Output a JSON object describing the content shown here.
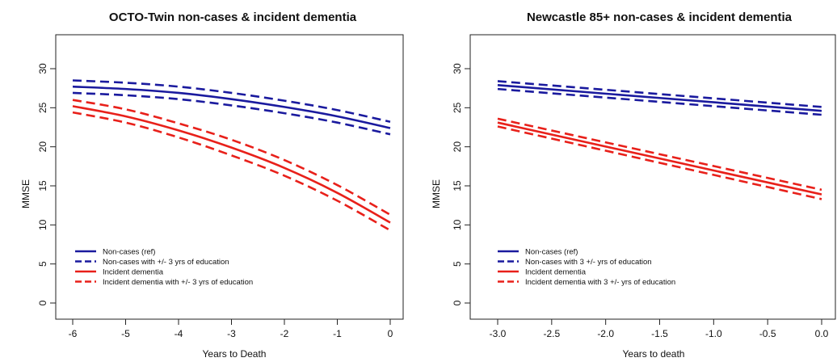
{
  "colors": {
    "non_cases": "#1a1a9e",
    "dementia": "#e8201a"
  },
  "chart_data": [
    {
      "type": "line",
      "title": "OCTO-Twin non-cases & incident dementia",
      "xlabel": "Years to Death",
      "ylabel": "MMSE",
      "xlim": [
        -6,
        0
      ],
      "ylim": [
        0,
        30
      ],
      "xticks": [
        -6,
        -5,
        -4,
        -3,
        -2,
        -1,
        0
      ],
      "xtick_labels": [
        "-6",
        "-5",
        "-4",
        "-3",
        "-2",
        "-1",
        "0"
      ],
      "yticks": [
        0,
        5,
        10,
        15,
        20,
        25,
        30
      ],
      "ytick_labels": [
        "0",
        "5",
        "10",
        "15",
        "20",
        "25",
        "30"
      ],
      "grid": false,
      "legend_position": "bottom-left",
      "legend": [
        "Non-cases (ref)",
        "Non-cases with +/- 3 yrs of education",
        "Incident dementia",
        "Incident dementia with +/- 3 yrs of education"
      ],
      "x": [
        -6,
        -5,
        -4,
        -3,
        -2,
        -1,
        0
      ],
      "series": [
        {
          "name": "Non-cases (ref)",
          "color_key": "non_cases",
          "style": "solid",
          "values": [
            27.7,
            27.4,
            26.9,
            26.1,
            25.1,
            23.9,
            22.4
          ]
        },
        {
          "name": "Non-cases with +/- 3 yrs of education",
          "color_key": "non_cases",
          "style": "dashed",
          "values": [
            28.5,
            28.2,
            27.7,
            26.9,
            25.9,
            24.7,
            23.2
          ]
        },
        {
          "name": "Non-cases with +/- 3 yrs of education",
          "color_key": "non_cases",
          "style": "dashed",
          "values": [
            26.9,
            26.6,
            26.1,
            25.3,
            24.3,
            23.1,
            21.6
          ]
        },
        {
          "name": "Incident dementia",
          "color_key": "dementia",
          "style": "solid",
          "values": [
            25.2,
            23.9,
            22.1,
            19.9,
            17.3,
            14.1,
            10.3
          ]
        },
        {
          "name": "Incident dementia with +/- 3 yrs of education",
          "color_key": "dementia",
          "style": "dashed",
          "values": [
            26.0,
            24.8,
            23.0,
            20.9,
            18.3,
            15.1,
            11.3
          ]
        },
        {
          "name": "Incident dementia with +/- 3 yrs of education",
          "color_key": "dementia",
          "style": "dashed",
          "values": [
            24.4,
            23.1,
            21.2,
            18.9,
            16.3,
            13.1,
            9.3
          ]
        }
      ]
    },
    {
      "type": "line",
      "title": "Newcastle 85+ non-cases & incident dementia",
      "xlabel": "Years to death",
      "ylabel": "MMSE",
      "xlim": [
        -3,
        0
      ],
      "ylim": [
        0,
        30
      ],
      "xticks": [
        -3,
        -2.5,
        -2,
        -1.5,
        -1,
        -0.5,
        0
      ],
      "xtick_labels": [
        "-3.0",
        "-2.5",
        "-2.0",
        "-1.5",
        "-1.0",
        "-0.5",
        "0.0"
      ],
      "yticks": [
        0,
        5,
        10,
        15,
        20,
        25,
        30
      ],
      "ytick_labels": [
        "0",
        "5",
        "10",
        "15",
        "20",
        "25",
        "30"
      ],
      "grid": false,
      "legend_position": "bottom-left",
      "legend": [
        "Non-cases (ref)",
        "Non-cases with 3 +/- yrs of education",
        "Incident dementia",
        "Incident dementia with 3 +/- yrs of education"
      ],
      "x": [
        -3,
        0
      ],
      "series": [
        {
          "name": "Non-cases (ref)",
          "color_key": "non_cases",
          "style": "solid",
          "values": [
            27.9,
            24.6
          ]
        },
        {
          "name": "Non-cases with 3 +/- yrs of education",
          "color_key": "non_cases",
          "style": "dashed",
          "values": [
            28.4,
            25.1
          ]
        },
        {
          "name": "Non-cases with 3 +/- yrs of education",
          "color_key": "non_cases",
          "style": "dashed",
          "values": [
            27.4,
            24.1
          ]
        },
        {
          "name": "Incident dementia",
          "color_key": "dementia",
          "style": "solid",
          "values": [
            23.1,
            13.9
          ]
        },
        {
          "name": "Incident dementia with 3 +/- yrs of education",
          "color_key": "dementia",
          "style": "dashed",
          "values": [
            23.6,
            14.5
          ]
        },
        {
          "name": "Incident dementia with 3 +/- yrs of education",
          "color_key": "dementia",
          "style": "dashed",
          "values": [
            22.6,
            13.3
          ]
        }
      ]
    }
  ]
}
